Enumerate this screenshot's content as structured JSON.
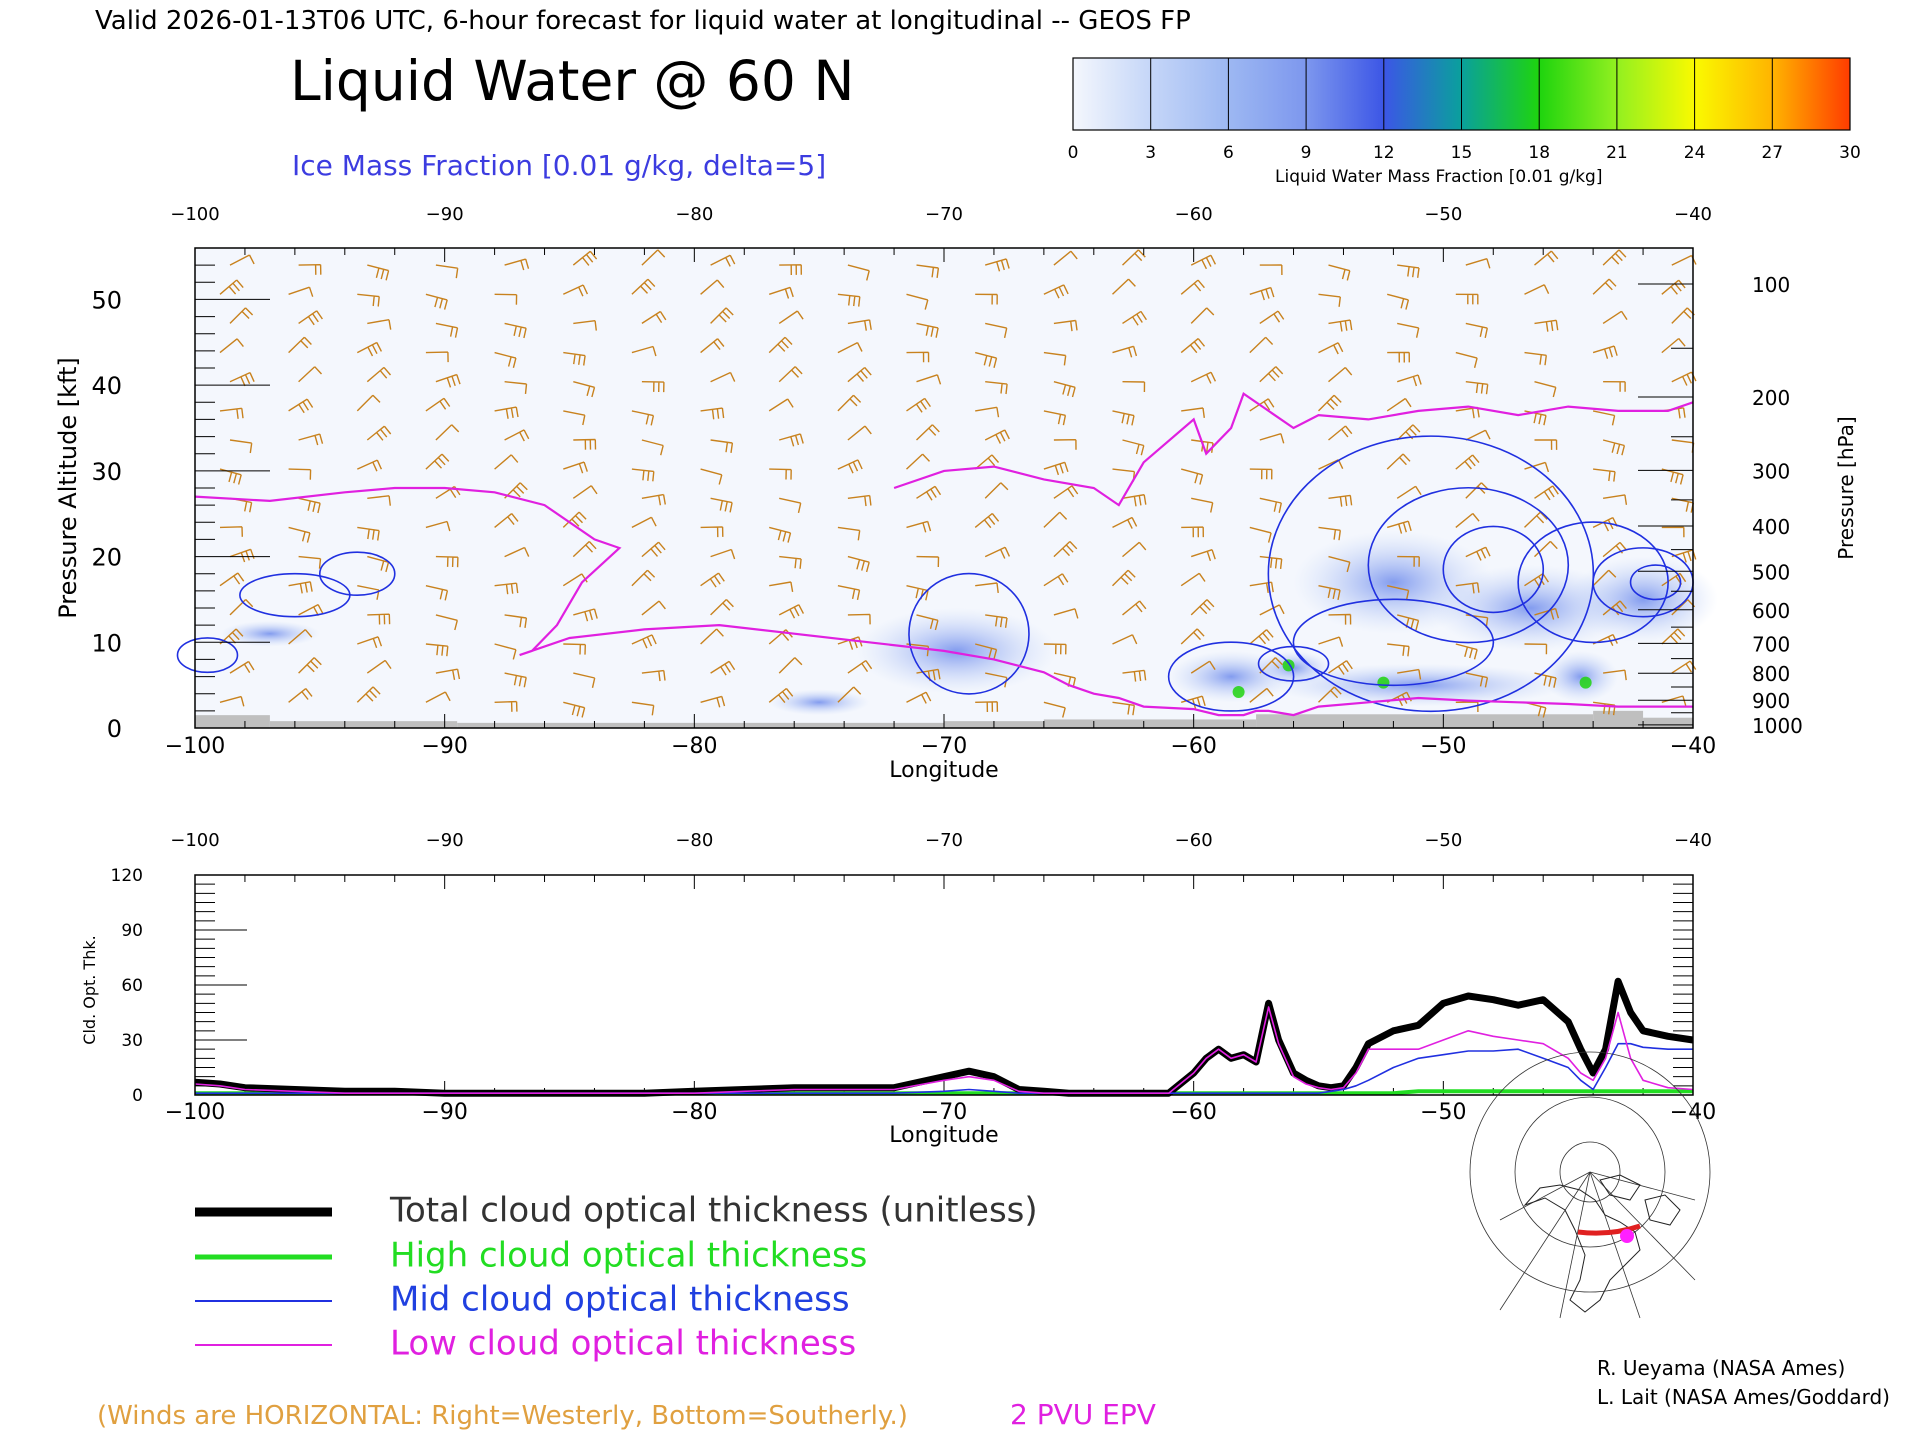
{
  "header": {
    "valid_line": "Valid 2026-01-13T06 UTC, 6-hour forecast for liquid water at longitudinal -- GEOS FP",
    "title": "Liquid Water @ 60 N",
    "ice_label": "Ice Mass Fraction [0.01 g/kg, delta=5]"
  },
  "colorbar": {
    "label": "Liquid Water Mass Fraction [0.01 g/kg]",
    "ticks": [
      "0",
      "3",
      "6",
      "9",
      "12",
      "15",
      "18",
      "21",
      "24",
      "27",
      "30"
    ],
    "colors": [
      "#f4f7fd",
      "#c5d6f8",
      "#9db8f2",
      "#7d97ee",
      "#3c56e6",
      "#0aa09c",
      "#1ed40e",
      "#92f020",
      "#fafa00",
      "#ffb400",
      "#ff3c00"
    ]
  },
  "chart_data": [
    {
      "type": "line",
      "panel": "cross-section",
      "xlabel": "Longitude",
      "ylabel": "Pressure Altitude [kft]",
      "ylabel_right": "Pressure [hPa]",
      "xlim": [
        -100,
        -40
      ],
      "ylim": [
        0,
        56
      ],
      "x_ticks": [
        "−100",
        "−90",
        "−80",
        "−70",
        "−60",
        "−50",
        "−40"
      ],
      "y_ticks": [
        "0",
        "10",
        "20",
        "30",
        "40",
        "50"
      ],
      "pressure_ticks": [
        "100",
        "200",
        "300",
        "400",
        "500",
        "600",
        "700",
        "800",
        "900",
        "1000"
      ],
      "series": [
        {
          "name": "2 PVU EPV",
          "color": "#e020e0",
          "x": [
            -100,
            -97,
            -94,
            -92,
            -90,
            -88,
            -86,
            -84,
            -83,
            -84.5,
            -85.5,
            -86.5,
            -87,
            -87,
            -85,
            -82,
            -79,
            -76,
            -73,
            -70,
            -68,
            -66,
            -65,
            -64,
            -63,
            -62,
            -60,
            -59,
            -58,
            -57.5,
            -57,
            -56,
            -55,
            -53,
            -51,
            -49,
            -47,
            -45,
            -43,
            -41,
            -40
          ],
          "y": [
            27,
            26.5,
            27.5,
            28,
            28,
            27.5,
            26,
            22,
            21,
            17,
            12,
            9,
            8.5,
            8.5,
            10.5,
            11.5,
            12,
            11,
            10,
            9,
            8,
            6.5,
            5,
            4,
            3.5,
            2.5,
            2.2,
            1.5,
            1.5,
            2,
            2,
            1.5,
            2.5,
            3,
            3.5,
            3.2,
            3,
            2.8,
            2.5,
            2.5,
            2.5
          ]
        },
        {
          "name": "2 PVU EPV upper",
          "color": "#e020e0",
          "x": [
            -72,
            -70,
            -68,
            -66,
            -64,
            -63,
            -62,
            -60,
            -59.5,
            -58.5,
            -58,
            -57,
            -56,
            -55,
            -53,
            -51,
            -49,
            -47,
            -45,
            -43,
            -41,
            -40
          ],
          "y": [
            28,
            30,
            30.5,
            29,
            28,
            26,
            31,
            36,
            32,
            35,
            39,
            37,
            35,
            36.5,
            36,
            37,
            37.5,
            36.5,
            37.5,
            37,
            37,
            38
          ]
        }
      ]
    },
    {
      "type": "line",
      "panel": "optical-thickness",
      "xlabel": "Longitude",
      "ylabel": "Cld. Opt. Thk.",
      "xlim": [
        -100,
        -40
      ],
      "ylim": [
        0,
        120
      ],
      "x_ticks": [
        "−100",
        "−90",
        "−80",
        "−70",
        "−60",
        "−50",
        "−40"
      ],
      "y_ticks": [
        "0",
        "30",
        "60",
        "90",
        "120"
      ],
      "x": [
        -100,
        -99,
        -98,
        -96,
        -94,
        -92,
        -90,
        -88,
        -86,
        -84,
        -82,
        -80,
        -78,
        -76,
        -74,
        -72,
        -70,
        -69,
        -68,
        -67,
        -66,
        -65,
        -64,
        -63,
        -62,
        -61,
        -60,
        -59.5,
        -59,
        -58.5,
        -58,
        -57.5,
        -57,
        -56.6,
        -56,
        -55.5,
        -55,
        -54.5,
        -54,
        -53.5,
        -53,
        -52,
        -51,
        -50,
        -49,
        -48,
        -47,
        -46,
        -45,
        -44.5,
        -44,
        -43.5,
        -43,
        -42.5,
        -42,
        -41,
        -40
      ],
      "series": [
        {
          "name": "Total cloud optical thickness (unitless)",
          "color": "#000000",
          "values": [
            7,
            6,
            4,
            3,
            2,
            2,
            1,
            1,
            1,
            1,
            1,
            2,
            3,
            4,
            4,
            4,
            10,
            13,
            10,
            3,
            2,
            1,
            1,
            1,
            1,
            1,
            12,
            20,
            25,
            20,
            22,
            18,
            50,
            30,
            12,
            8,
            5,
            4,
            5,
            15,
            28,
            35,
            38,
            50,
            54,
            52,
            49,
            52,
            40,
            25,
            12,
            25,
            62,
            45,
            35,
            32,
            30
          ]
        },
        {
          "name": "High cloud optical thickness",
          "color": "#22dd22",
          "values": [
            1,
            1,
            1,
            1,
            1,
            1,
            1,
            1,
            1,
            1,
            1,
            1,
            1,
            1,
            1,
            1,
            1,
            1,
            1,
            1,
            1,
            1,
            1,
            1,
            1,
            1,
            1,
            1,
            1,
            1,
            1,
            1,
            1,
            1,
            1,
            1,
            1,
            1,
            1,
            1,
            1,
            1,
            2,
            2,
            2,
            2,
            2,
            2,
            2,
            2,
            2,
            2,
            2,
            2,
            2,
            2,
            2
          ]
        },
        {
          "name": "Mid cloud optical thickness",
          "color": "#2030e0",
          "values": [
            1,
            1,
            1,
            1,
            1,
            1,
            1,
            1,
            1,
            1,
            1,
            1,
            1,
            1,
            1,
            1,
            2,
            3,
            2,
            1,
            1,
            1,
            1,
            1,
            1,
            1,
            1,
            1,
            1,
            1,
            1,
            1,
            1,
            1,
            1,
            1,
            1,
            2,
            3,
            5,
            8,
            15,
            20,
            22,
            24,
            24,
            25,
            20,
            15,
            8,
            3,
            15,
            28,
            28,
            26,
            25,
            25
          ]
        },
        {
          "name": "Low cloud optical thickness",
          "color": "#e020e0",
          "values": [
            6,
            5,
            3,
            2,
            1,
            1,
            1,
            1,
            1,
            1,
            1,
            1,
            2,
            3,
            3,
            3,
            8,
            10,
            8,
            2,
            1,
            1,
            1,
            1,
            1,
            1,
            12,
            20,
            25,
            20,
            22,
            18,
            48,
            28,
            10,
            6,
            4,
            3,
            4,
            12,
            25,
            25,
            25,
            30,
            35,
            32,
            30,
            28,
            20,
            12,
            8,
            20,
            45,
            20,
            8,
            4,
            3
          ]
        }
      ]
    }
  ],
  "legend": {
    "total": "Total cloud optical thickness (unitless)",
    "high": "High cloud optical thickness",
    "mid": "Mid cloud optical thickness",
    "low": "Low cloud optical thickness"
  },
  "footer": {
    "winds": "(Winds are HORIZONTAL: Right=Westerly, Bottom=Southerly.)",
    "epv": "2 PVU EPV",
    "credit1": "R. Ueyama (NASA Ames)",
    "credit2": "L. Lait (NASA Ames/Goddard)"
  },
  "colors": {
    "wind_barbs": "#c8821e",
    "ice_contour": "#2030e0",
    "epv": "#e020e0",
    "terrain": "#bfbfbf"
  }
}
